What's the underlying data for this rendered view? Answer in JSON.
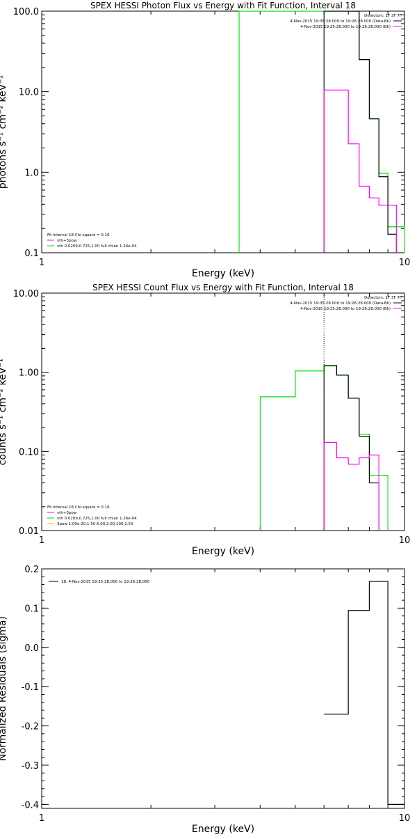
{
  "colors": {
    "background": "#ffffff",
    "axes": "#000000",
    "data": "#000000",
    "total_model": "#ff00ff",
    "vth": "#00e000",
    "thick2": "#ffb000"
  },
  "chart_data": [
    {
      "type": "line",
      "title": "SPEX HESSI Photon Flux vs Energy with Fit Function, Interval 18",
      "xlabel": "Energy (keV)",
      "ylabel": "photons s⁻¹ cm⁻² keV⁻¹",
      "xscale": "log",
      "yscale": "log",
      "xlim": [
        1,
        10
      ],
      "ylim": [
        0.1,
        100
      ],
      "xticks": [
        {
          "v": 1,
          "label": "1"
        },
        {
          "v": 10,
          "label": "10"
        }
      ],
      "yticks": [
        {
          "v": 0.1,
          "label": "0.1"
        },
        {
          "v": 1,
          "label": "1.0"
        },
        {
          "v": 10,
          "label": "10.0"
        },
        {
          "v": 100,
          "label": "100.0"
        }
      ],
      "grid": false,
      "legend_topright": {
        "detectors": "Detectors: 1F 3F 7F",
        "lines": [
          {
            "text": "4-Nov-2015 19:35:28.000 to 19:26:28.000 (Data-Bk)",
            "color": "#000000"
          },
          {
            "text": "4-Nov-2015 19:25:28.000 to 19:26:28.000 (Bk)",
            "color": "#ff00ff"
          }
        ]
      },
      "legend_bottomleft": {
        "header": "Fit Interval 18   Chi-square = 0.16",
        "lines": [
          {
            "text": "vth+3pow",
            "color": "#ff00ff"
          },
          {
            "text": "vth 0.0209,0.725,1.00  full chian 1.26e-04",
            "color": "#00e000"
          }
        ]
      },
      "series": [
        {
          "name": "vth",
          "color": "#00e000",
          "x": [
            3,
            3.5,
            4,
            4.5,
            5,
            5.5,
            6,
            6.5,
            7,
            7.5,
            8,
            8.5,
            9,
            9.5,
            10
          ],
          "y": [
            null,
            100,
            100,
            100,
            100,
            100,
            100,
            100,
            100,
            25,
            4.6,
            0.97,
            0.21,
            0.21,
            null
          ]
        },
        {
          "name": "4-Nov-2015 19:35:28.000 to 19:26:28.000 (Data-Bk)",
          "color": "#000000",
          "x": [
            6,
            6.5,
            7,
            7.5,
            8,
            8.5,
            9,
            9.5,
            10
          ],
          "y": [
            100,
            100,
            100,
            25,
            4.6,
            0.88,
            0.17,
            null,
            null
          ]
        },
        {
          "name": "4-Nov-2015 19:25:28.000 to 19:26:28.000 (Bk)",
          "color": "#ff00ff",
          "x": [
            6,
            6.5,
            7,
            7.5,
            8,
            8.5,
            9,
            9.5,
            10
          ],
          "y": [
            10.5,
            10.5,
            2.25,
            0.67,
            0.48,
            0.39,
            0.39,
            null,
            null
          ]
        }
      ]
    },
    {
      "type": "line",
      "title": "SPEX HESSI Count Flux vs Energy with Fit Function, Interval 18",
      "xlabel": "Energy (keV)",
      "ylabel": "counts s⁻¹ cm⁻² keV⁻¹",
      "xscale": "log",
      "yscale": "log",
      "xlim": [
        1,
        10
      ],
      "ylim": [
        0.01,
        10
      ],
      "xticks": [
        {
          "v": 1,
          "label": "1"
        },
        {
          "v": 10,
          "label": "10"
        }
      ],
      "yticks": [
        {
          "v": 0.01,
          "label": "0.01"
        },
        {
          "v": 0.1,
          "label": "0.10"
        },
        {
          "v": 1,
          "label": "1.00"
        },
        {
          "v": 10,
          "label": "10.00"
        }
      ],
      "grid": false,
      "vline_dotted": 6,
      "legend_topright": {
        "detectors": "Detectors: 1F 3F 7F",
        "lines": [
          {
            "text": "4-Nov-2015 19:35:28.000 to 19:26:28.000 (Data-Bk)",
            "color": "#000000"
          },
          {
            "text": "4-Nov-2015 19:25:28.000 to 19:26:28.000 (Bk)",
            "color": "#ff00ff"
          }
        ]
      },
      "legend_bottomleft": {
        "header": "Fit Interval 18   Chi-square = 0.16",
        "lines": [
          {
            "text": "vth+3pow",
            "color": "#ff00ff"
          },
          {
            "text": "vth 0.0209,0.725,1.00  full chian 1.26e-04",
            "color": "#00e000"
          },
          {
            "text": "3pow 1.00e-20,1.50,5.00,2.00,100,2.50",
            "color": "#ffb000"
          }
        ]
      },
      "series": [
        {
          "name": "vth",
          "color": "#00e000",
          "x": [
            4,
            5,
            6,
            6.5,
            7,
            7.5,
            8,
            8.5,
            9,
            9.5,
            10
          ],
          "y": [
            0.49,
            1.04,
            1.2,
            0.92,
            0.47,
            0.165,
            0.05,
            0.05,
            null,
            null,
            null
          ]
        },
        {
          "name": "4-Nov-2015 19:35:28.000 to 19:26:28.000 (Data-Bk)",
          "color": "#000000",
          "x": [
            6,
            6.5,
            7,
            7.5,
            8,
            8.5,
            9,
            9.5,
            10
          ],
          "y": [
            1.22,
            0.92,
            0.47,
            0.155,
            0.04,
            null,
            null,
            null,
            null
          ]
        },
        {
          "name": "4-Nov-2015 19:25:28.000 to 19:26:28.000 (Bk)",
          "color": "#ff00ff",
          "x": [
            6,
            6.5,
            7,
            7.5,
            8,
            8.5,
            9,
            9.5,
            10
          ],
          "y": [
            0.13,
            0.083,
            0.069,
            0.083,
            0.09,
            null,
            null,
            null,
            null
          ]
        }
      ]
    },
    {
      "type": "line",
      "title": "",
      "xlabel": "Energy (keV)",
      "ylabel": "Normalized Residuals (sigma)",
      "xscale": "log",
      "yscale": "linear",
      "xlim": [
        1,
        10
      ],
      "ylim": [
        -0.41,
        0.2
      ],
      "xticks": [
        {
          "v": 1,
          "label": "1"
        },
        {
          "v": 10,
          "label": "10"
        }
      ],
      "yticks": [
        {
          "v": 0.2,
          "label": "0.2"
        },
        {
          "v": 0.1,
          "label": "0.1"
        },
        {
          "v": 0.0,
          "label": "0.0"
        },
        {
          "v": -0.1,
          "label": "-0.1"
        },
        {
          "v": -0.2,
          "label": "-0.2"
        },
        {
          "v": -0.3,
          "label": "-0.3"
        },
        {
          "v": -0.4,
          "label": "-0.4"
        }
      ],
      "grid": false,
      "legend_topleft": {
        "lines": [
          {
            "text": "18.  4-Nov-2015 19:35:28.000 to 19:26:28.000",
            "color": "#000000"
          }
        ]
      },
      "series": [
        {
          "name": "18.  4-Nov-2015 19:35:28.000 to 19:26:28.000",
          "color": "#000000",
          "x": [
            6,
            7,
            8,
            9,
            10
          ],
          "y": [
            -0.17,
            0.094,
            0.168,
            -0.4,
            -0.327
          ]
        }
      ]
    }
  ]
}
